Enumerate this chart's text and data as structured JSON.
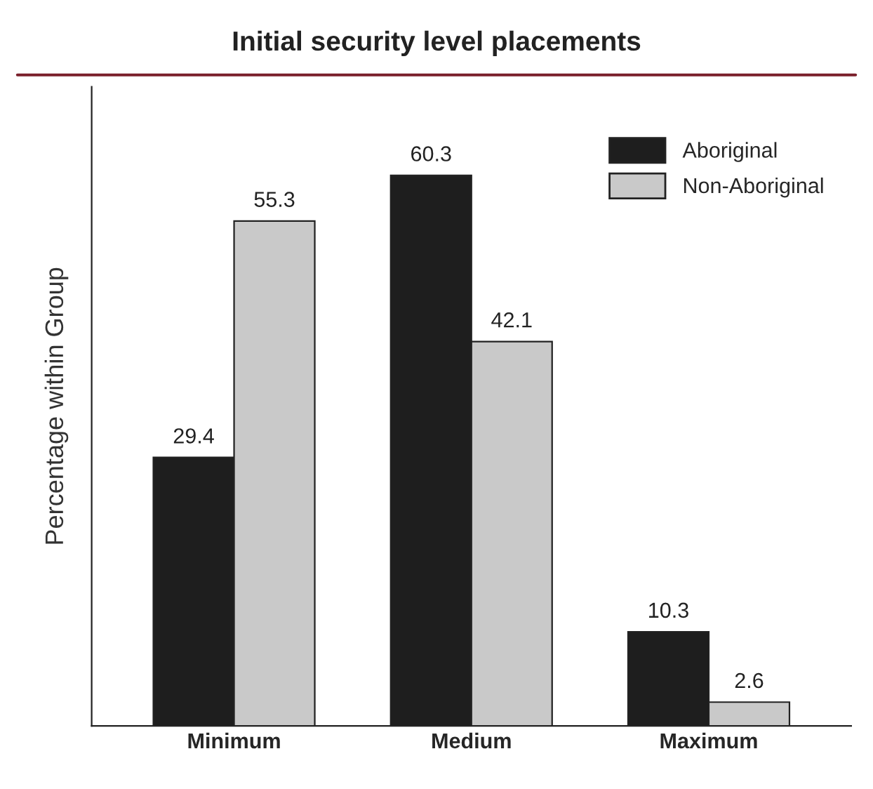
{
  "chart_data": {
    "type": "bar",
    "title": "Initial security level placements",
    "ylabel": "Percentage within Group",
    "categories": [
      "Minimum",
      "Medium",
      "Maximum"
    ],
    "series": [
      {
        "name": "Aboriginal",
        "color": "#1e1e1e",
        "values": [
          29.4,
          60.3,
          10.3
        ]
      },
      {
        "name": "Non-Aboriginal",
        "color": "#c9c9c9",
        "values": [
          55.3,
          42.1,
          2.6
        ]
      }
    ],
    "ylim": [
      0,
      70
    ],
    "data_labels": true,
    "legend": "top right",
    "grid": false,
    "tick_labels": "x"
  }
}
